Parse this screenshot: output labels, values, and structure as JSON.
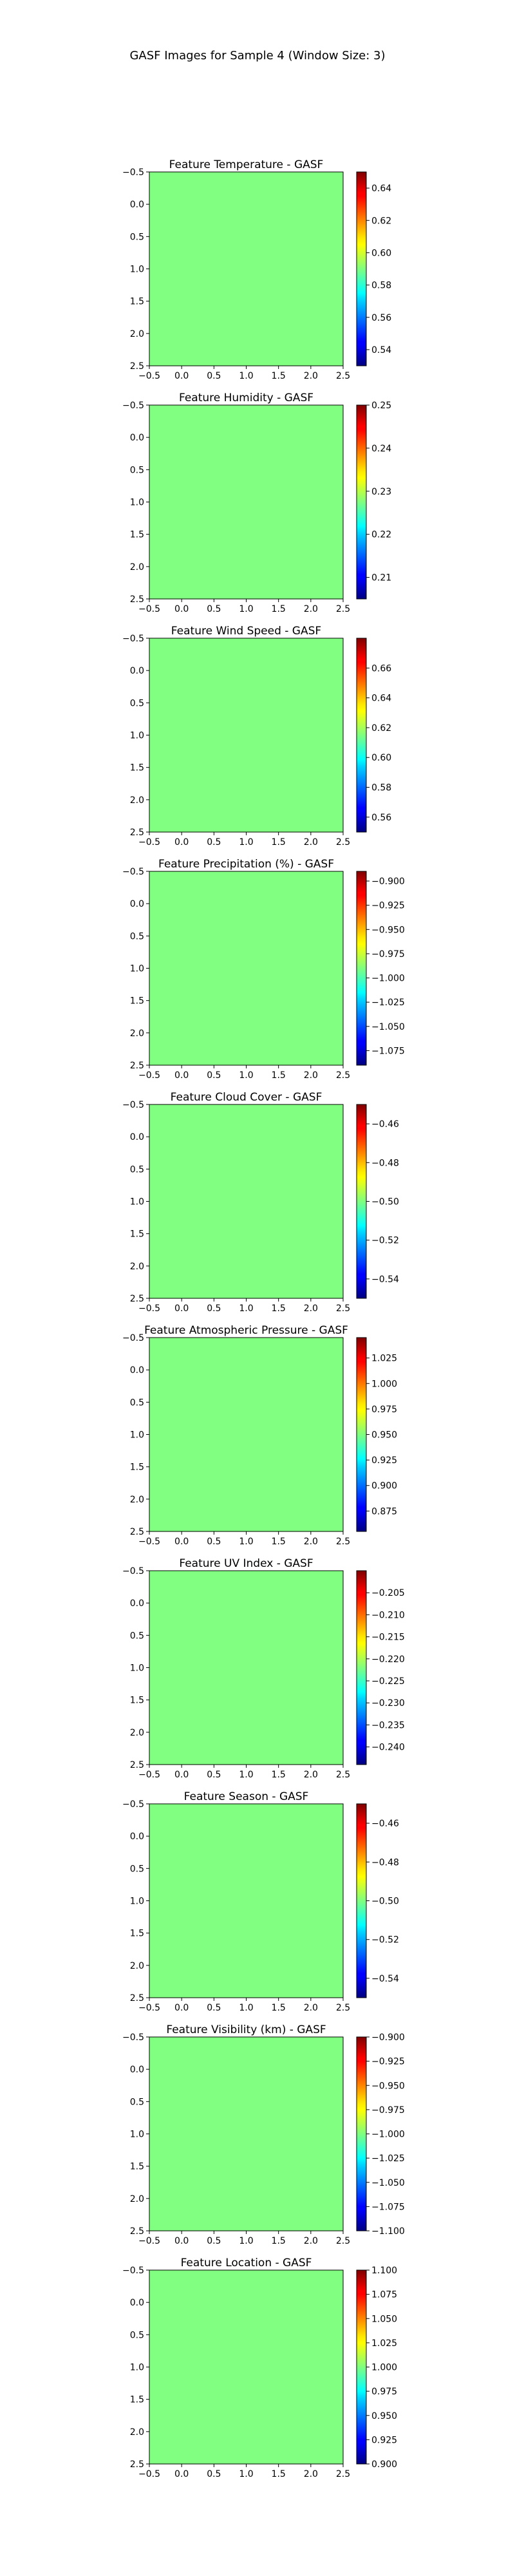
{
  "figure": {
    "suptitle": "GASF Images for Sample 4 (Window Size: 3)",
    "fill_color": "#80ff80"
  },
  "chart_data": [
    {
      "type": "heatmap",
      "title": "Feature Temperature - GASF",
      "matrix": [
        [
          0.6,
          0.6,
          0.6
        ],
        [
          0.6,
          0.6,
          0.6
        ],
        [
          0.6,
          0.6,
          0.6
        ]
      ],
      "clim": [
        0.53,
        0.65
      ],
      "cbar_ticks": [
        "0.54",
        "0.56",
        "0.58",
        "0.60",
        "0.62",
        "0.64"
      ],
      "xticks": [
        "−0.5",
        "0.0",
        "0.5",
        "1.0",
        "1.5",
        "2.0",
        "2.5"
      ],
      "yticks": [
        "−0.5",
        "0.0",
        "0.5",
        "1.0",
        "1.5",
        "2.0",
        "2.5"
      ],
      "colormap": "jet"
    },
    {
      "type": "heatmap",
      "title": "Feature Humidity - GASF",
      "matrix": [
        [
          0.23,
          0.23,
          0.23
        ],
        [
          0.23,
          0.23,
          0.23
        ],
        [
          0.23,
          0.23,
          0.23
        ]
      ],
      "clim": [
        0.205,
        0.25
      ],
      "cbar_ticks": [
        "0.21",
        "0.22",
        "0.23",
        "0.24",
        "0.25"
      ],
      "xticks": [
        "−0.5",
        "0.0",
        "0.5",
        "1.0",
        "1.5",
        "2.0",
        "2.5"
      ],
      "yticks": [
        "−0.5",
        "0.0",
        "0.5",
        "1.0",
        "1.5",
        "2.0",
        "2.5"
      ],
      "colormap": "jet"
    },
    {
      "type": "heatmap",
      "title": "Feature Wind Speed - GASF",
      "matrix": [
        [
          0.62,
          0.62,
          0.62
        ],
        [
          0.62,
          0.62,
          0.62
        ],
        [
          0.62,
          0.62,
          0.62
        ]
      ],
      "clim": [
        0.55,
        0.68
      ],
      "cbar_ticks": [
        "0.56",
        "0.58",
        "0.60",
        "0.62",
        "0.64",
        "0.66"
      ],
      "xticks": [
        "−0.5",
        "0.0",
        "0.5",
        "1.0",
        "1.5",
        "2.0",
        "2.5"
      ],
      "yticks": [
        "−0.5",
        "0.0",
        "0.5",
        "1.0",
        "1.5",
        "2.0",
        "2.5"
      ],
      "colormap": "jet"
    },
    {
      "type": "heatmap",
      "title": "Feature Precipitation (%) - GASF",
      "matrix": [
        [
          -0.99,
          -0.99,
          -0.99
        ],
        [
          -0.99,
          -0.99,
          -0.99
        ],
        [
          -0.99,
          -0.99,
          -0.99
        ]
      ],
      "clim": [
        -1.09,
        -0.89
      ],
      "cbar_ticks": [
        "−1.075",
        "−1.050",
        "−1.025",
        "−1.000",
        "−0.975",
        "−0.950",
        "−0.925",
        "−0.900"
      ],
      "xticks": [
        "−0.5",
        "0.0",
        "0.5",
        "1.0",
        "1.5",
        "2.0",
        "2.5"
      ],
      "yticks": [
        "−0.5",
        "0.0",
        "0.5",
        "1.0",
        "1.5",
        "2.0",
        "2.5"
      ],
      "colormap": "jet"
    },
    {
      "type": "heatmap",
      "title": "Feature Cloud Cover - GASF",
      "matrix": [
        [
          -0.5,
          -0.5,
          -0.5
        ],
        [
          -0.5,
          -0.5,
          -0.5
        ],
        [
          -0.5,
          -0.5,
          -0.5
        ]
      ],
      "clim": [
        -0.55,
        -0.45
      ],
      "cbar_ticks": [
        "−0.54",
        "−0.52",
        "−0.50",
        "−0.48",
        "−0.46"
      ],
      "xticks": [
        "−0.5",
        "0.0",
        "0.5",
        "1.0",
        "1.5",
        "2.0",
        "2.5"
      ],
      "yticks": [
        "−0.5",
        "0.0",
        "0.5",
        "1.0",
        "1.5",
        "2.0",
        "2.5"
      ],
      "colormap": "jet"
    },
    {
      "type": "heatmap",
      "title": "Feature Atmospheric Pressure - GASF",
      "matrix": [
        [
          0.95,
          0.95,
          0.95
        ],
        [
          0.95,
          0.95,
          0.95
        ],
        [
          0.95,
          0.95,
          0.95
        ]
      ],
      "clim": [
        0.855,
        1.045
      ],
      "cbar_ticks": [
        "0.875",
        "0.900",
        "0.925",
        "0.950",
        "0.975",
        "1.000",
        "1.025"
      ],
      "xticks": [
        "−0.5",
        "0.0",
        "0.5",
        "1.0",
        "1.5",
        "2.0",
        "2.5"
      ],
      "yticks": [
        "−0.5",
        "0.0",
        "0.5",
        "1.0",
        "1.5",
        "2.0",
        "2.5"
      ],
      "colormap": "jet"
    },
    {
      "type": "heatmap",
      "title": "Feature UV Index - GASF",
      "matrix": [
        [
          -0.222,
          -0.222,
          -0.222
        ],
        [
          -0.222,
          -0.222,
          -0.222
        ],
        [
          -0.222,
          -0.222,
          -0.222
        ]
      ],
      "clim": [
        -0.244,
        -0.2
      ],
      "cbar_ticks": [
        "−0.240",
        "−0.235",
        "−0.230",
        "−0.225",
        "−0.220",
        "−0.215",
        "−0.210",
        "−0.205"
      ],
      "xticks": [
        "−0.5",
        "0.0",
        "0.5",
        "1.0",
        "1.5",
        "2.0",
        "2.5"
      ],
      "yticks": [
        "−0.5",
        "0.0",
        "0.5",
        "1.0",
        "1.5",
        "2.0",
        "2.5"
      ],
      "colormap": "jet"
    },
    {
      "type": "heatmap",
      "title": "Feature Season - GASF",
      "matrix": [
        [
          -0.5,
          -0.5,
          -0.5
        ],
        [
          -0.5,
          -0.5,
          -0.5
        ],
        [
          -0.5,
          -0.5,
          -0.5
        ]
      ],
      "clim": [
        -0.55,
        -0.45
      ],
      "cbar_ticks": [
        "−0.54",
        "−0.52",
        "−0.50",
        "−0.48",
        "−0.46"
      ],
      "xticks": [
        "−0.5",
        "0.0",
        "0.5",
        "1.0",
        "1.5",
        "2.0",
        "2.5"
      ],
      "yticks": [
        "−0.5",
        "0.0",
        "0.5",
        "1.0",
        "1.5",
        "2.0",
        "2.5"
      ],
      "colormap": "jet"
    },
    {
      "type": "heatmap",
      "title": "Feature Visibility (km) - GASF",
      "matrix": [
        [
          -1.0,
          -1.0,
          -1.0
        ],
        [
          -1.0,
          -1.0,
          -1.0
        ],
        [
          -1.0,
          -1.0,
          -1.0
        ]
      ],
      "clim": [
        -1.1,
        -0.9
      ],
      "cbar_ticks": [
        "−1.100",
        "−1.075",
        "−1.050",
        "−1.025",
        "−1.000",
        "−0.975",
        "−0.950",
        "−0.925",
        "−0.900"
      ],
      "xticks": [
        "−0.5",
        "0.0",
        "0.5",
        "1.0",
        "1.5",
        "2.0",
        "2.5"
      ],
      "yticks": [
        "−0.5",
        "0.0",
        "0.5",
        "1.0",
        "1.5",
        "2.0",
        "2.5"
      ],
      "colormap": "jet"
    },
    {
      "type": "heatmap",
      "title": "Feature Location - GASF",
      "matrix": [
        [
          1.0,
          1.0,
          1.0
        ],
        [
          1.0,
          1.0,
          1.0
        ],
        [
          1.0,
          1.0,
          1.0
        ]
      ],
      "clim": [
        0.9,
        1.1
      ],
      "cbar_ticks": [
        "0.900",
        "0.925",
        "0.950",
        "0.975",
        "1.000",
        "1.025",
        "1.050",
        "1.075",
        "1.100"
      ],
      "xticks": [
        "−0.5",
        "0.0",
        "0.5",
        "1.0",
        "1.5",
        "2.0",
        "2.5"
      ],
      "yticks": [
        "−0.5",
        "0.0",
        "0.5",
        "1.0",
        "1.5",
        "2.0",
        "2.5"
      ],
      "colormap": "jet"
    }
  ]
}
